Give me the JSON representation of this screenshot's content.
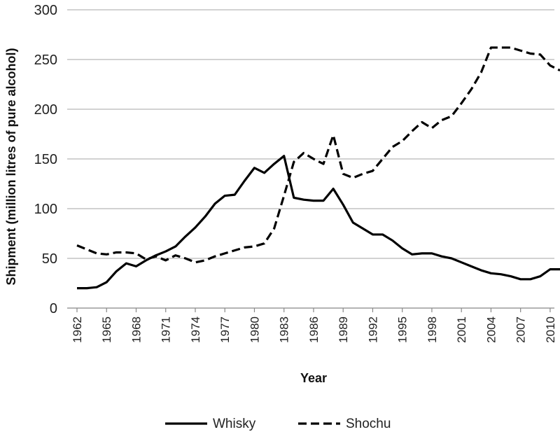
{
  "chart_data": {
    "type": "line",
    "title": "",
    "xlabel": "Year",
    "ylabel": "Shipment (million litres of pure alcohol)",
    "ylim": [
      0,
      300
    ],
    "yticks": [
      "0",
      "50",
      "100",
      "150",
      "200",
      "250",
      "300"
    ],
    "xticks": [
      "1962",
      "1965",
      "1968",
      "1971",
      "1974",
      "1977",
      "1980",
      "1983",
      "1986",
      "1989",
      "1992",
      "1995",
      "1998",
      "2001",
      "2004",
      "2007",
      "2010"
    ],
    "x": [
      1962,
      1963,
      1964,
      1965,
      1966,
      1967,
      1968,
      1969,
      1970,
      1971,
      1972,
      1973,
      1974,
      1975,
      1976,
      1977,
      1978,
      1979,
      1980,
      1981,
      1982,
      1983,
      1984,
      1985,
      1986,
      1987,
      1988,
      1989,
      1990,
      1991,
      1992,
      1993,
      1994,
      1995,
      1996,
      1997,
      1998,
      1999,
      2000,
      2001,
      2002,
      2003,
      2004,
      2005,
      2006,
      2007,
      2008,
      2009,
      2010,
      2011
    ],
    "grid": "horizontal",
    "legend_position": "bottom",
    "series": [
      {
        "name": "Whisky",
        "style": "solid",
        "color": "#000000",
        "values": [
          20,
          20,
          21,
          26,
          37,
          45,
          42,
          48,
          53,
          57,
          62,
          72,
          81,
          92,
          105,
          113,
          114,
          128,
          141,
          136,
          145,
          153,
          111,
          109,
          108,
          108,
          120,
          104,
          86,
          80,
          74,
          74,
          68,
          60,
          54,
          55,
          55,
          52,
          50,
          46,
          42,
          38,
          35,
          34,
          32,
          29,
          29,
          32,
          39,
          39
        ]
      },
      {
        "name": "Shochu",
        "style": "dashed",
        "color": "#000000",
        "values": [
          63,
          59,
          55,
          54,
          56,
          56,
          55,
          49,
          52,
          48,
          53,
          50,
          46,
          48,
          52,
          55,
          58,
          61,
          62,
          65,
          80,
          113,
          147,
          156,
          150,
          145,
          174,
          135,
          131,
          135,
          138,
          150,
          162,
          168,
          178,
          187,
          181,
          189,
          193,
          206,
          220,
          237,
          262,
          262,
          262,
          259,
          256,
          255,
          244,
          239
        ]
      }
    ]
  }
}
